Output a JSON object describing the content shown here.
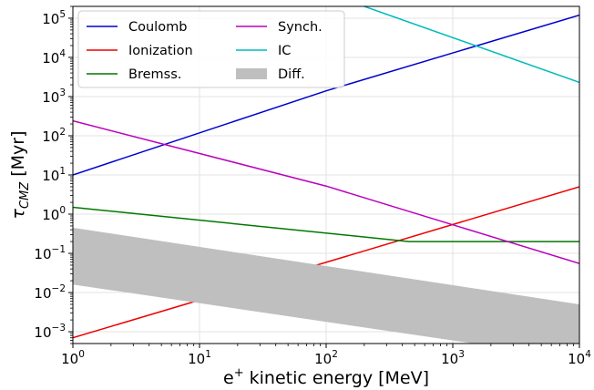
{
  "chart_data": {
    "type": "line",
    "xlabel": "e$^+$ kinetic energy [MeV]",
    "xlabel_parts": {
      "pre": "e",
      "sup": "+",
      "post": " kinetic energy [MeV]"
    },
    "ylabel_parts": {
      "sym": "τ",
      "sub": "CMZ",
      "post": " [Myr]"
    },
    "x_scale": "log",
    "y_scale": "log",
    "xlim": [
      1,
      10000
    ],
    "ylim": [
      0.0005,
      200000
    ],
    "grid": true,
    "legend_position": "top-left",
    "x_ticks": [
      {
        "value": 1,
        "base": "10",
        "exp": "0"
      },
      {
        "value": 10,
        "base": "10",
        "exp": "1"
      },
      {
        "value": 100,
        "base": "10",
        "exp": "2"
      },
      {
        "value": 1000,
        "base": "10",
        "exp": "3"
      },
      {
        "value": 10000,
        "base": "10",
        "exp": "4"
      }
    ],
    "y_ticks": [
      {
        "value": 0.001,
        "base": "10",
        "exp": "−3"
      },
      {
        "value": 0.01,
        "base": "10",
        "exp": "−2"
      },
      {
        "value": 0.1,
        "base": "10",
        "exp": "−1"
      },
      {
        "value": 1,
        "base": "10",
        "exp": "0"
      },
      {
        "value": 10,
        "base": "10",
        "exp": "1"
      },
      {
        "value": 100,
        "base": "10",
        "exp": "2"
      },
      {
        "value": 1000,
        "base": "10",
        "exp": "3"
      },
      {
        "value": 10000,
        "base": "10",
        "exp": "4"
      },
      {
        "value": 100000,
        "base": "10",
        "exp": "5"
      }
    ],
    "series": [
      {
        "name": "Coulomb",
        "color": "#0000cc",
        "type": "line",
        "x": [
          1,
          100,
          10000
        ],
        "y": [
          10,
          1400,
          120000
        ]
      },
      {
        "name": "Ionization",
        "color": "#ee0000",
        "type": "line",
        "x": [
          1,
          10000
        ],
        "y": [
          0.0007,
          5
        ]
      },
      {
        "name": "Bremss.",
        "color": "#007700",
        "type": "line",
        "x": [
          1,
          450,
          10000
        ],
        "y": [
          1.5,
          0.2,
          0.2
        ]
      },
      {
        "name": "Synch.",
        "color": "#bb00bb",
        "type": "line",
        "x": [
          1,
          100,
          10000
        ],
        "y": [
          240,
          5.2,
          0.055
        ]
      },
      {
        "name": "IC",
        "color": "#00bbbb",
        "type": "line",
        "x": [
          200,
          10000
        ],
        "y": [
          200000,
          2300
        ]
      },
      {
        "name": "Diff.",
        "color": "#bfbfbf",
        "type": "band",
        "x": [
          1,
          10000
        ],
        "y_upper": [
          0.45,
          0.005
        ],
        "y_lower": [
          0.016,
          0.0002
        ]
      }
    ]
  }
}
